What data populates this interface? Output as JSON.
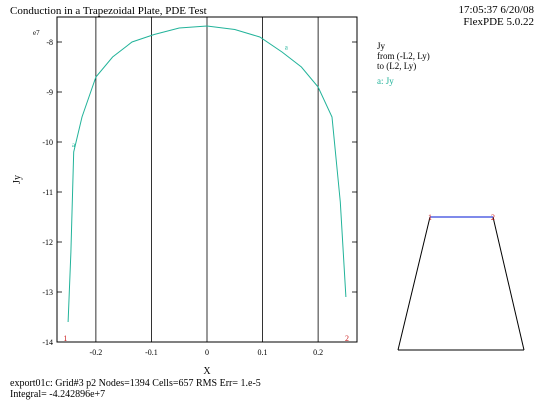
{
  "header": {
    "title": "Conduction in a Trapezoidal Plate, PDE Test",
    "time": "17:05:37 6/20/08",
    "version": "FlexPDE 5.0.22"
  },
  "legend": {
    "lines": [
      "Jy",
      "from (-L2, Ly)",
      "to (L2, Ly)"
    ],
    "series_label": "a: Jy"
  },
  "footer": {
    "line1": "export01c:  Grid#3  p2  Nodes=1394 Cells=657 RMS Err= 1.e-5",
    "line2": "Integral= -4.242896e+7"
  },
  "colors": {
    "series": "#22b39a",
    "grid": "#000000",
    "marker": "#cc2222",
    "top_edge": "#3344dd"
  },
  "chart_data": {
    "type": "line",
    "title": "Conduction in a Trapezoidal Plate, PDE Test",
    "xlabel": "X",
    "ylabel": "Jy",
    "y_exponent_label": "e7",
    "xlim": [
      -0.27,
      0.27
    ],
    "ylim": [
      -14,
      -7.5
    ],
    "xticks": [
      -0.2,
      -0.1,
      0,
      0.1,
      0.2
    ],
    "xtick_labels": [
      "-0.2",
      "-0.1",
      "0",
      "0.1",
      "0.2"
    ],
    "yticks": [
      -14,
      -13,
      -12,
      -11,
      -10,
      -9,
      -8
    ],
    "ytick_labels": [
      "-14",
      "-13",
      "-12",
      "-11",
      "-10",
      "-9",
      "-8"
    ],
    "grid": true,
    "end_markers": [
      "1",
      "2"
    ],
    "series": [
      {
        "label": "a",
        "x": [
          -0.25,
          -0.245,
          -0.24,
          -0.225,
          -0.2,
          -0.17,
          -0.135,
          -0.095,
          -0.05,
          0,
          0.05,
          0.095,
          0.135,
          0.17,
          0.2,
          0.225,
          0.24,
          0.25
        ],
        "y": [
          -13.6,
          -12.2,
          -10.2,
          -9.5,
          -8.7,
          -8.3,
          -8.0,
          -7.85,
          -7.72,
          -7.68,
          -7.75,
          -7.9,
          -8.2,
          -8.5,
          -8.9,
          -9.5,
          -11.2,
          -13.1
        ]
      }
    ]
  },
  "inset": {
    "vertex_labels": [
      "1",
      "2"
    ]
  }
}
